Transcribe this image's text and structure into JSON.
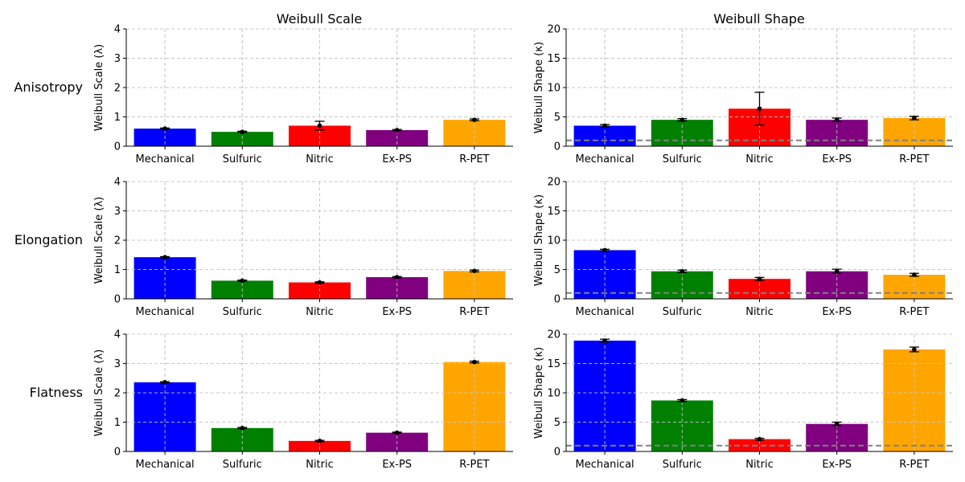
{
  "figure": {
    "column_titles": [
      "Weibull Scale",
      "Weibull Shape"
    ],
    "row_labels": [
      "Anisotropy",
      "Elongation",
      "Flatness"
    ]
  },
  "chart_data": [
    {
      "type": "bar",
      "row": "Anisotropy",
      "title": "Weibull Scale",
      "xlabel": "",
      "ylabel": "Weibull Scale (λ)",
      "categories": [
        "Mechanical",
        "Sulfuric",
        "Nitric",
        "Ex-PS",
        "R-PET"
      ],
      "values": [
        0.6,
        0.49,
        0.7,
        0.55,
        0.9
      ],
      "error": [
        0.02,
        0.02,
        0.15,
        0.02,
        0.03
      ],
      "colors": [
        "#0000ff",
        "#008000",
        "#ff0000",
        "#800080",
        "#ffa500"
      ],
      "ylim": [
        0,
        4
      ],
      "yticks": [
        0,
        1,
        2,
        3,
        4
      ],
      "grid": true,
      "reference_line": null
    },
    {
      "type": "bar",
      "row": "Anisotropy",
      "title": "Weibull Shape",
      "xlabel": "",
      "ylabel": "Weibull Shape (κ)",
      "categories": [
        "Mechanical",
        "Sulfuric",
        "Nitric",
        "Ex-PS",
        "R-PET"
      ],
      "values": [
        3.5,
        4.5,
        6.4,
        4.5,
        4.8
      ],
      "error": [
        0.2,
        0.2,
        2.8,
        0.3,
        0.3
      ],
      "colors": [
        "#0000ff",
        "#008000",
        "#ff0000",
        "#800080",
        "#ffa500"
      ],
      "ylim": [
        0,
        20
      ],
      "yticks": [
        0,
        5,
        10,
        15,
        20
      ],
      "grid": true,
      "reference_line": 1
    },
    {
      "type": "bar",
      "row": "Elongation",
      "title": "",
      "xlabel": "",
      "ylabel": "Weibull Scale (λ)",
      "categories": [
        "Mechanical",
        "Sulfuric",
        "Nitric",
        "Ex-PS",
        "R-PET"
      ],
      "values": [
        1.42,
        0.62,
        0.56,
        0.74,
        0.95
      ],
      "error": [
        0.02,
        0.02,
        0.02,
        0.02,
        0.03
      ],
      "colors": [
        "#0000ff",
        "#008000",
        "#ff0000",
        "#800080",
        "#ffa500"
      ],
      "ylim": [
        0,
        4
      ],
      "yticks": [
        0,
        1,
        2,
        3,
        4
      ],
      "grid": true,
      "reference_line": null
    },
    {
      "type": "bar",
      "row": "Elongation",
      "title": "",
      "xlabel": "",
      "ylabel": "Weibull Shape (κ)",
      "categories": [
        "Mechanical",
        "Sulfuric",
        "Nitric",
        "Ex-PS",
        "R-PET"
      ],
      "values": [
        8.3,
        4.7,
        3.4,
        4.7,
        4.1
      ],
      "error": [
        0.15,
        0.2,
        0.25,
        0.35,
        0.25
      ],
      "colors": [
        "#0000ff",
        "#008000",
        "#ff0000",
        "#800080",
        "#ffa500"
      ],
      "ylim": [
        0,
        20
      ],
      "yticks": [
        0,
        5,
        10,
        15,
        20
      ],
      "grid": true,
      "reference_line": 1
    },
    {
      "type": "bar",
      "row": "Flatness",
      "title": "",
      "xlabel": "",
      "ylabel": "Weibull Scale (λ)",
      "categories": [
        "Mechanical",
        "Sulfuric",
        "Nitric",
        "Ex-PS",
        "R-PET"
      ],
      "values": [
        2.36,
        0.8,
        0.36,
        0.64,
        3.05
      ],
      "error": [
        0.02,
        0.02,
        0.02,
        0.02,
        0.03
      ],
      "colors": [
        "#0000ff",
        "#008000",
        "#ff0000",
        "#800080",
        "#ffa500"
      ],
      "ylim": [
        0,
        4
      ],
      "yticks": [
        0,
        1,
        2,
        3,
        4
      ],
      "grid": true,
      "reference_line": null
    },
    {
      "type": "bar",
      "row": "Flatness",
      "title": "",
      "xlabel": "",
      "ylabel": "Weibull Shape (κ)",
      "categories": [
        "Mechanical",
        "Sulfuric",
        "Nitric",
        "Ex-PS",
        "R-PET"
      ],
      "values": [
        18.9,
        8.7,
        2.1,
        4.7,
        17.4
      ],
      "error": [
        0.25,
        0.15,
        0.15,
        0.3,
        0.4
      ],
      "colors": [
        "#0000ff",
        "#008000",
        "#ff0000",
        "#800080",
        "#ffa500"
      ],
      "ylim": [
        0,
        20
      ],
      "yticks": [
        0,
        5,
        10,
        15,
        20
      ],
      "grid": true,
      "reference_line": 1
    }
  ]
}
